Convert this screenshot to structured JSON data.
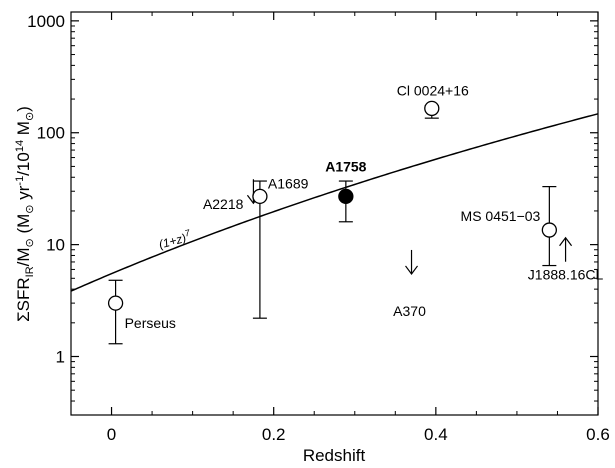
{
  "chart_data": {
    "type": "scatter",
    "title": "",
    "xlabel": "Redshift",
    "ylabel_parts": {
      "a": "ΣSFR",
      "a_sub": "IR",
      "b": "/M",
      "b_sub": "⊙",
      "c": " (M",
      "c_sub": "⊙",
      "d": " yr",
      "d_sup": "-1",
      "e": "/10",
      "e_sup": "14",
      "f": " M",
      "f_sub": "⊙",
      "g": ")"
    },
    "xlim": [
      -0.05,
      0.6
    ],
    "ylim": [
      0.3,
      1200
    ],
    "yscale": "log",
    "xticks": [
      0,
      0.2,
      0.4,
      0.6
    ],
    "xtick_labels": [
      "0",
      "0.2",
      "0.4",
      "0.6"
    ],
    "yticks": [
      1,
      10,
      100,
      1000
    ],
    "ytick_labels": [
      "1",
      "10",
      "100",
      "1000"
    ],
    "grid": false,
    "legend": "none",
    "curve": {
      "label": "(1+z)",
      "label_sup": "7",
      "norm": 5.5,
      "exponent": 7,
      "label_x": 0.06,
      "label_y": 9.2
    },
    "points": [
      {
        "name": "Perseus",
        "x": 0.005,
        "y": 3.0,
        "yerr_low": 1.3,
        "yerr_high": 4.8,
        "filled": false,
        "bold": false,
        "upper_limit": false,
        "lower_limit": false
      },
      {
        "name": "A2218",
        "x": 0.175,
        "y": 30.0,
        "yerr_low": null,
        "yerr_high": null,
        "filled": false,
        "bold": false,
        "upper_limit": true,
        "lower_limit": false
      },
      {
        "name": "A1689",
        "x": 0.183,
        "y": 27.0,
        "yerr_low": 2.2,
        "yerr_high": 37.0,
        "filled": false,
        "bold": false,
        "upper_limit": false,
        "lower_limit": false
      },
      {
        "name": "A1758",
        "x": 0.289,
        "y": 27.0,
        "yerr_low": 16.0,
        "yerr_high": 37.0,
        "filled": true,
        "bold": true,
        "upper_limit": false,
        "lower_limit": false
      },
      {
        "name": "A370",
        "x": 0.37,
        "y": 7.0,
        "yerr_low": null,
        "yerr_high": null,
        "filled": false,
        "bold": false,
        "upper_limit": true,
        "lower_limit": false
      },
      {
        "name": "Cl 0024+16",
        "x": 0.395,
        "y": 165.0,
        "yerr_low": 135.0,
        "yerr_high": 175.0,
        "filled": false,
        "bold": false,
        "upper_limit": false,
        "lower_limit": false
      },
      {
        "name": "MS 0451−03",
        "x": 0.54,
        "y": 13.5,
        "yerr_low": 6.5,
        "yerr_high": 33.0,
        "filled": false,
        "bold": false,
        "upper_limit": false,
        "lower_limit": false
      },
      {
        "name": "J1888.16CL",
        "x": 0.56,
        "y": 9.0,
        "yerr_low": null,
        "yerr_high": null,
        "filled": false,
        "bold": false,
        "upper_limit": false,
        "lower_limit": true
      }
    ]
  }
}
